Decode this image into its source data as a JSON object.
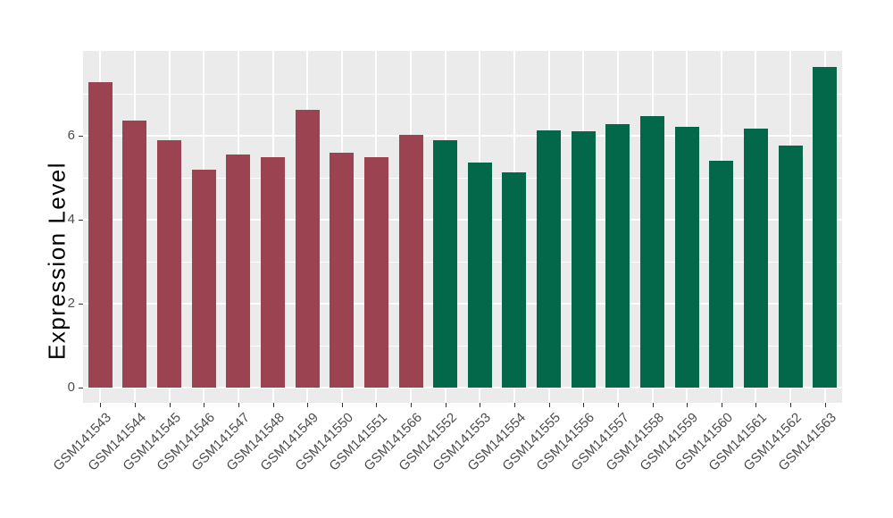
{
  "chart_data": {
    "type": "bar",
    "title": "",
    "xlabel": "",
    "ylabel": "Expression Level",
    "ylim": [
      0,
      8.02
    ],
    "yticks": [
      0,
      2,
      4,
      6
    ],
    "minor_yticks": [
      1,
      3,
      5,
      7
    ],
    "grid": "on",
    "legend": "none",
    "panel_background": "#EBEBEB",
    "gridline_color": "#FFFFFF",
    "axis_text_color": "#4D4D4D",
    "axis_title_color": "#000000",
    "categories": [
      "GSM141543",
      "GSM141544",
      "GSM141545",
      "GSM141546",
      "GSM141547",
      "GSM141548",
      "GSM141549",
      "GSM141550",
      "GSM141551",
      "GSM141566",
      "GSM141552",
      "GSM141553",
      "GSM141554",
      "GSM141555",
      "GSM141556",
      "GSM141557",
      "GSM141558",
      "GSM141559",
      "GSM141560",
      "GSM141561",
      "GSM141562",
      "GSM141563"
    ],
    "values": [
      7.27,
      6.36,
      5.9,
      5.2,
      5.55,
      5.5,
      6.62,
      5.6,
      5.49,
      6.03,
      5.9,
      5.37,
      5.12,
      6.13,
      6.1,
      6.28,
      6.47,
      6.21,
      5.4,
      6.18,
      5.77,
      7.63
    ],
    "groups": [
      "group-a",
      "group-a",
      "group-a",
      "group-a",
      "group-a",
      "group-a",
      "group-a",
      "group-a",
      "group-a",
      "group-a",
      "group-b",
      "group-b",
      "group-b",
      "group-b",
      "group-b",
      "group-b",
      "group-b",
      "group-b",
      "group-b",
      "group-b",
      "group-b",
      "group-b"
    ],
    "group_colors": {
      "group-a": "#9C4351",
      "group-b": "#03684A"
    }
  }
}
